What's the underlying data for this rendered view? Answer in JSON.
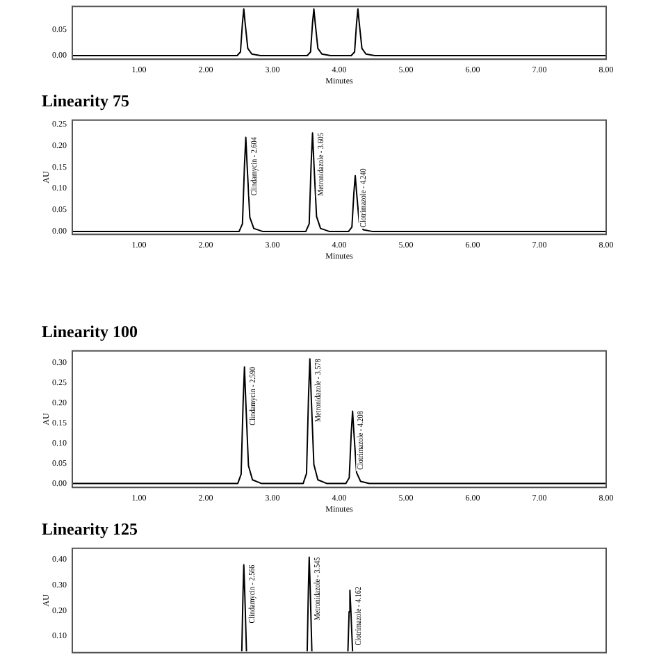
{
  "chart_data": [
    {
      "type": "line",
      "xlabel": "Minutes",
      "xlim": [
        0,
        8
      ],
      "xticks": [
        {
          "value": 1,
          "label": "1.00"
        },
        {
          "value": 2,
          "label": "2.00"
        },
        {
          "value": 3,
          "label": "3.00"
        },
        {
          "value": 4,
          "label": "4.00"
        },
        {
          "value": 5,
          "label": "5.00"
        },
        {
          "value": 6,
          "label": "6.00"
        },
        {
          "value": 7,
          "label": "7.00"
        },
        {
          "value": 8,
          "label": "8.00"
        }
      ],
      "ylim": [
        -0.007,
        0.095
      ],
      "yticks": [
        {
          "value": 0,
          "label": "0.00"
        },
        {
          "value": 0.05,
          "label": "0.05"
        }
      ],
      "grid": false,
      "legend": false,
      "series": [
        {
          "color": "#000000",
          "x": [
            0,
            2.47,
            2.52,
            2.55,
            2.57,
            2.59,
            2.63,
            2.69,
            2.82,
            3.52,
            3.57,
            3.6,
            3.62,
            3.64,
            3.68,
            3.74,
            3.87,
            4.18,
            4.23,
            4.26,
            4.28,
            4.3,
            4.34,
            4.4,
            4.53,
            8
          ],
          "values": [
            0,
            0,
            0.007,
            0.063,
            0.09,
            0.063,
            0.014,
            0.003,
            0,
            0,
            0.007,
            0.063,
            0.09,
            0.063,
            0.014,
            0.003,
            0,
            0,
            0.007,
            0.063,
            0.09,
            0.063,
            0.014,
            0.003,
            0,
            0
          ]
        }
      ]
    },
    {
      "type": "line",
      "title": "Linearity 75",
      "xlabel": "Minutes",
      "ylabel": "AU",
      "xlim": [
        0,
        8
      ],
      "xticks": [
        {
          "value": 1,
          "label": "1.00"
        },
        {
          "value": 2,
          "label": "2.00"
        },
        {
          "value": 3,
          "label": "3.00"
        },
        {
          "value": 4,
          "label": "4.00"
        },
        {
          "value": 5,
          "label": "5.00"
        },
        {
          "value": 6,
          "label": "6.00"
        },
        {
          "value": 7,
          "label": "7.00"
        },
        {
          "value": 8,
          "label": "8.00"
        }
      ],
      "ylim": [
        -0.007,
        0.26
      ],
      "yticks": [
        {
          "value": 0,
          "label": "0.00"
        },
        {
          "value": 0.05,
          "label": "0.05"
        },
        {
          "value": 0.1,
          "label": "0.10"
        },
        {
          "value": 0.15,
          "label": "0.15"
        },
        {
          "value": 0.2,
          "label": "0.20"
        },
        {
          "value": 0.25,
          "label": "0.25"
        }
      ],
      "grid": false,
      "legend": false,
      "series": [
        {
          "color": "#000000",
          "x": [
            0,
            2.5,
            2.55,
            2.58,
            2.6,
            2.62,
            2.66,
            2.72,
            2.85,
            3.5,
            3.55,
            3.58,
            3.6,
            3.62,
            3.66,
            3.72,
            3.85,
            4.14,
            4.19,
            4.22,
            4.24,
            4.26,
            4.3,
            4.36,
            4.49,
            8
          ],
          "values": [
            0,
            0,
            0.018,
            0.154,
            0.22,
            0.154,
            0.033,
            0.007,
            0,
            0,
            0.018,
            0.161,
            0.23,
            0.161,
            0.035,
            0.007,
            0,
            0,
            0.01,
            0.091,
            0.13,
            0.091,
            0.02,
            0.004,
            0,
            0
          ]
        }
      ],
      "annotations": [
        {
          "text": "Clindamycin - 2.604",
          "x": 2.6,
          "y": 0.22
        },
        {
          "text": "Metronidazole - 3.605",
          "x": 3.6,
          "y": 0.23
        },
        {
          "text": "Clotrimazole - 4.240",
          "x": 4.24,
          "y": 0.13
        }
      ]
    },
    {
      "type": "line",
      "title": "Linearity 100",
      "xlabel": "Minutes",
      "ylabel": "AU",
      "xlim": [
        0,
        8
      ],
      "xticks": [
        {
          "value": 1,
          "label": "1.00"
        },
        {
          "value": 2,
          "label": "2.00"
        },
        {
          "value": 3,
          "label": "3.00"
        },
        {
          "value": 4,
          "label": "4.00"
        },
        {
          "value": 5,
          "label": "5.00"
        },
        {
          "value": 6,
          "label": "6.00"
        },
        {
          "value": 7,
          "label": "7.00"
        },
        {
          "value": 8,
          "label": "8.00"
        }
      ],
      "ylim": [
        -0.01,
        0.33
      ],
      "yticks": [
        {
          "value": 0,
          "label": "0.00"
        },
        {
          "value": 0.05,
          "label": "0.05"
        },
        {
          "value": 0.1,
          "label": "0.10"
        },
        {
          "value": 0.15,
          "label": "0.15"
        },
        {
          "value": 0.2,
          "label": "0.20"
        },
        {
          "value": 0.25,
          "label": "0.25"
        },
        {
          "value": 0.3,
          "label": "0.30"
        }
      ],
      "grid": false,
      "legend": false,
      "series": [
        {
          "color": "#000000",
          "x": [
            0,
            2.48,
            2.53,
            2.56,
            2.58,
            2.6,
            2.64,
            2.7,
            2.83,
            3.46,
            3.51,
            3.54,
            3.56,
            3.58,
            3.62,
            3.68,
            3.81,
            4.1,
            4.15,
            4.18,
            4.2,
            4.22,
            4.26,
            4.32,
            4.45,
            8
          ],
          "values": [
            0,
            0,
            0.023,
            0.203,
            0.29,
            0.203,
            0.044,
            0.009,
            0,
            0,
            0.025,
            0.217,
            0.31,
            0.217,
            0.047,
            0.009,
            0,
            0,
            0.014,
            0.126,
            0.18,
            0.126,
            0.027,
            0.005,
            0,
            0
          ]
        }
      ],
      "annotations": [
        {
          "text": "Clindamycin - 2.590",
          "x": 2.58,
          "y": 0.29
        },
        {
          "text": "Metronidazole - 3.578",
          "x": 3.56,
          "y": 0.31
        },
        {
          "text": "Clotrimazole - 4.208",
          "x": 4.2,
          "y": 0.18
        }
      ]
    },
    {
      "type": "line",
      "title": "Linearity 125",
      "ylabel": "AU",
      "xlim": [
        0,
        8
      ],
      "ylim": [
        0.035,
        0.445
      ],
      "yticks": [
        {
          "value": 0.1,
          "label": "0.10"
        },
        {
          "value": 0.2,
          "label": "0.20"
        },
        {
          "value": 0.3,
          "label": "0.30"
        },
        {
          "value": 0.4,
          "label": "0.40"
        }
      ],
      "tick_labels": "y",
      "grid": false,
      "legend": false,
      "series": [
        {
          "color": "#000000",
          "x": [
            2.54,
            2.558,
            2.57,
            2.585,
            2.61,
            3.0,
            3.52,
            3.538,
            3.55,
            3.565,
            3.59,
            3.9,
            4.13,
            4.148,
            4.16,
            4.175,
            4.2
          ],
          "values": [
            0.04,
            0.266,
            0.38,
            0.266,
            0.04,
            null,
            0.04,
            0.287,
            0.41,
            0.287,
            0.04,
            null,
            0.04,
            0.196,
            0.28,
            0.196,
            0.04
          ]
        }
      ],
      "annotations": [
        {
          "text": "Clindamycin - 2.566",
          "x": 2.57,
          "y": 0.38
        },
        {
          "text": "Metronidazole - 3.545",
          "x": 3.55,
          "y": 0.41
        },
        {
          "text": "Clotrimazole - 4.162",
          "x": 4.16,
          "y": 0.28
        }
      ]
    }
  ]
}
